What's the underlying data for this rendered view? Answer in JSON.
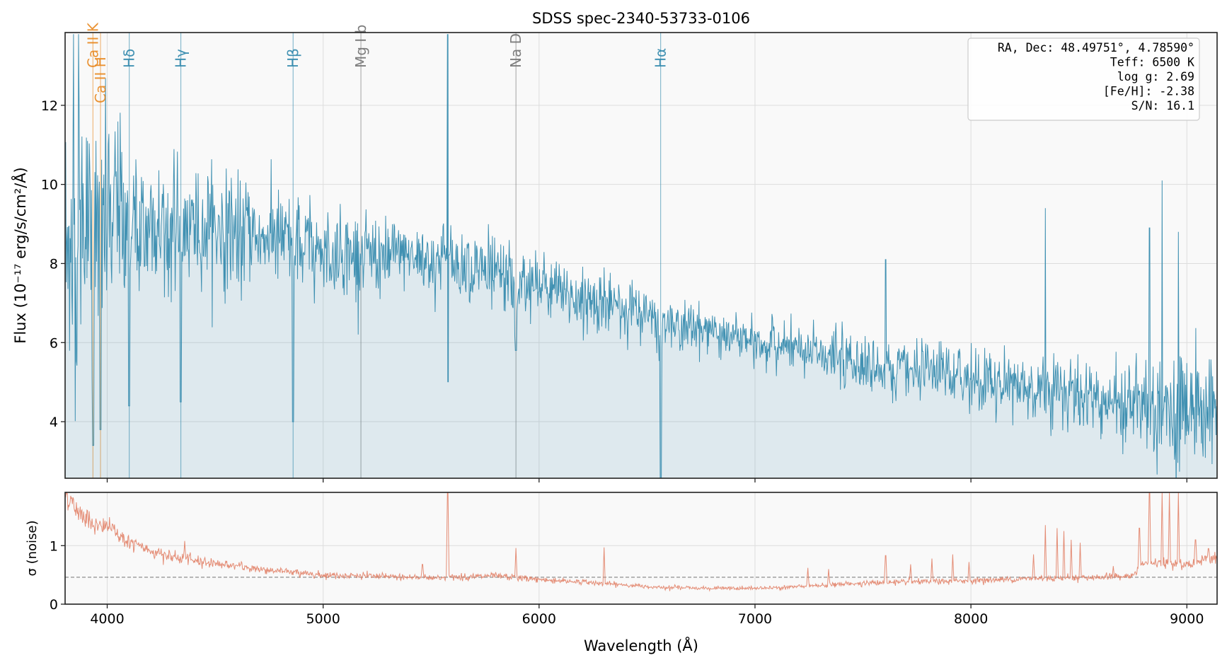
{
  "chart_data": [
    {
      "type": "line",
      "title": "SDSS spec-2340-53733-0106",
      "xlabel": "Wavelength (Å)",
      "ylabel": "Flux (10⁻¹⁷ erg/s/cm²/Å)",
      "xlim": [
        3805,
        9140
      ],
      "ylim": [
        2.57,
        13.84
      ],
      "xticks": [
        4000,
        5000,
        6000,
        7000,
        8000,
        9000
      ],
      "xtick_labels": [
        "4000",
        "5000",
        "6000",
        "7000",
        "8000",
        "9000"
      ],
      "yticks": [
        4,
        6,
        8,
        10,
        12
      ],
      "ytick_labels": [
        "4",
        "6",
        "8",
        "10",
        "12"
      ],
      "grid": true,
      "series_color": "#2e86ab",
      "fill_color": "#2e86ab",
      "continuum": {
        "wavelength": [
          3805,
          3900,
          4000,
          4200,
          4500,
          4800,
          5000,
          5300,
          5600,
          5900,
          6100,
          6400,
          6600,
          6800,
          7000,
          7300,
          7600,
          8000,
          8300,
          8600,
          9000,
          9140
        ],
        "flux": [
          8.3,
          8.8,
          9.2,
          9.0,
          8.9,
          8.6,
          8.3,
          8.2,
          8.1,
          7.6,
          7.2,
          6.9,
          6.5,
          6.3,
          6.0,
          5.7,
          5.4,
          5.1,
          4.9,
          4.6,
          4.3,
          4.3
        ]
      },
      "absorption_features": [
        {
          "wavelength": 3934,
          "min_flux": 3.4
        },
        {
          "wavelength": 3969,
          "min_flux": 3.8
        },
        {
          "wavelength": 4102,
          "min_flux": 4.4
        },
        {
          "wavelength": 4341,
          "min_flux": 4.5
        },
        {
          "wavelength": 4861,
          "min_flux": 4.0
        },
        {
          "wavelength": 5893,
          "min_flux": 5.8
        },
        {
          "wavelength": 6563,
          "min_flux": 2.5
        }
      ],
      "sky_residuals": [
        {
          "wavelength": 3845,
          "flux": 13.8
        },
        {
          "wavelength": 3868,
          "flux": 13.8
        },
        {
          "wavelength": 5577,
          "flux": 13.8,
          "low": 5.0
        },
        {
          "wavelength": 6300,
          "flux": 7.9
        },
        {
          "wavelength": 7605,
          "flux": 8.1
        },
        {
          "wavelength": 8345,
          "flux": 9.4
        },
        {
          "wavelength": 8827,
          "flux": 8.9
        },
        {
          "wavelength": 8885,
          "flux": 10.1
        },
        {
          "wavelength": 8960,
          "flux": 8.8
        }
      ],
      "line_markers": [
        {
          "name": "Ca II K",
          "wavelength": 3934,
          "color": "#e8871e"
        },
        {
          "name": "Ca II H",
          "wavelength": 3969,
          "color": "#e8871e"
        },
        {
          "name": "Hδ",
          "wavelength": 4102,
          "color": "#2e86ab"
        },
        {
          "name": "Hγ",
          "wavelength": 4341,
          "color": "#2e86ab"
        },
        {
          "name": "Hβ",
          "wavelength": 4861,
          "color": "#2e86ab"
        },
        {
          "name": "Mg I b",
          "wavelength": 5175,
          "color": "#777777"
        },
        {
          "name": "Na D",
          "wavelength": 5893,
          "color": "#777777"
        },
        {
          "name": "Hα",
          "wavelength": 6563,
          "color": "#2e86ab"
        }
      ],
      "annotation": [
        "RA, Dec: 48.49751°, 4.78590°",
        "Teff: 6500 K",
        "log g: 2.69",
        "[Fe/H]: -2.38",
        "S/N: 16.1"
      ],
      "annotation_placement": "top-right"
    },
    {
      "type": "line",
      "ylabel": "σ (noise)",
      "xlim": [
        3805,
        9140
      ],
      "ylim": [
        0,
        1.91
      ],
      "yticks": [
        0,
        1
      ],
      "ytick_labels": [
        "0",
        "1"
      ],
      "series_color": "#e07a5f",
      "median_line": 0.46,
      "sigma": {
        "wavelength": [
          3805,
          3850,
          3900,
          3960,
          4000,
          4100,
          4200,
          4300,
          4500,
          4700,
          5000,
          5500,
          5800,
          6000,
          6200,
          6500,
          6800,
          7000,
          7200,
          7500,
          8000,
          8300,
          8600,
          8750,
          8800,
          9000,
          9140
        ],
        "value": [
          1.9,
          1.65,
          1.5,
          1.3,
          1.35,
          1.05,
          0.92,
          0.8,
          0.7,
          0.6,
          0.5,
          0.45,
          0.48,
          0.42,
          0.38,
          0.3,
          0.27,
          0.27,
          0.3,
          0.36,
          0.4,
          0.44,
          0.46,
          0.48,
          0.7,
          0.68,
          0.82
        ]
      },
      "spikes": [
        {
          "wavelength": 4358,
          "value": 1.08
        },
        {
          "wavelength": 5460,
          "value": 0.68
        },
        {
          "wavelength": 5577,
          "value": 1.91
        },
        {
          "wavelength": 5893,
          "value": 0.96
        },
        {
          "wavelength": 6300,
          "value": 0.97
        },
        {
          "wavelength": 7245,
          "value": 0.62
        },
        {
          "wavelength": 7340,
          "value": 0.6
        },
        {
          "wavelength": 7605,
          "value": 0.83
        },
        {
          "wavelength": 7720,
          "value": 0.68
        },
        {
          "wavelength": 7820,
          "value": 0.78
        },
        {
          "wavelength": 7915,
          "value": 0.85
        },
        {
          "wavelength": 7990,
          "value": 0.72
        },
        {
          "wavelength": 8290,
          "value": 0.85
        },
        {
          "wavelength": 8345,
          "value": 1.35
        },
        {
          "wavelength": 8400,
          "value": 1.3
        },
        {
          "wavelength": 8430,
          "value": 1.25
        },
        {
          "wavelength": 8465,
          "value": 1.1
        },
        {
          "wavelength": 8505,
          "value": 1.05
        },
        {
          "wavelength": 8660,
          "value": 0.65
        },
        {
          "wavelength": 8780,
          "value": 1.3
        },
        {
          "wavelength": 8827,
          "value": 1.91
        },
        {
          "wavelength": 8885,
          "value": 1.91
        },
        {
          "wavelength": 8920,
          "value": 1.91
        },
        {
          "wavelength": 8960,
          "value": 1.91
        },
        {
          "wavelength": 9040,
          "value": 1.1
        },
        {
          "wavelength": 9100,
          "value": 0.95
        }
      ]
    }
  ]
}
